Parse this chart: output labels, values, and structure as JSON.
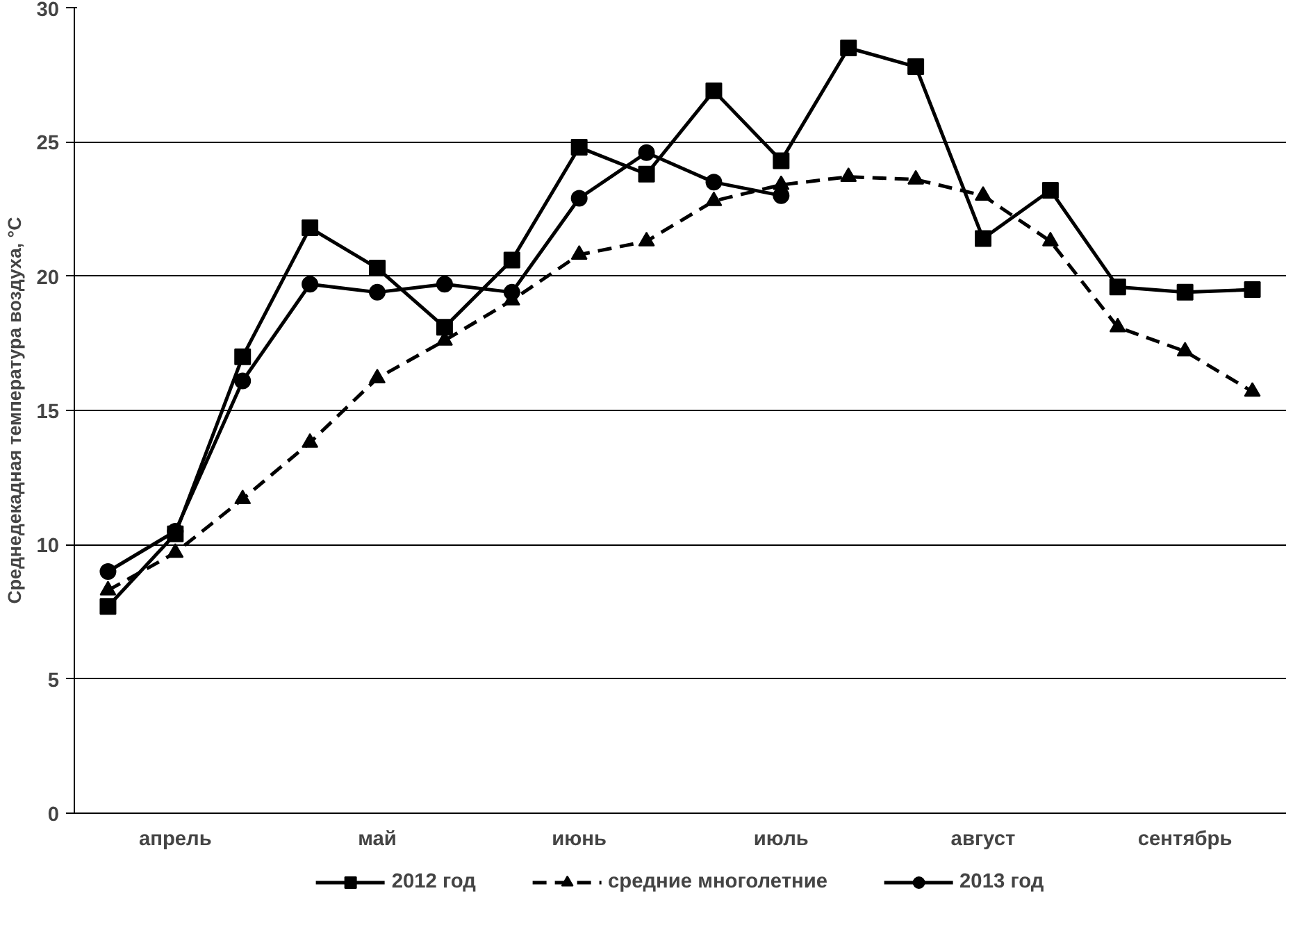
{
  "chart_data": {
    "type": "line",
    "ylabel": "Среднедекадная температура воздуха, °С",
    "categories": [
      null,
      "апрель",
      null,
      null,
      "май",
      null,
      null,
      "июнь",
      null,
      null,
      "июль",
      null,
      null,
      "август",
      null,
      null,
      "сентябрь",
      null
    ],
    "ylim": [
      0,
      30
    ],
    "yticks": [
      0,
      5,
      10,
      15,
      20,
      25,
      30
    ],
    "grid": "y",
    "legend": "bottom",
    "series": [
      {
        "name": "2012 год",
        "color": "#000000",
        "marker": "square",
        "line_style": "solid",
        "values": [
          7.7,
          10.4,
          17.0,
          21.8,
          20.3,
          18.1,
          20.6,
          24.8,
          23.8,
          26.9,
          24.3,
          28.5,
          27.8,
          21.4,
          23.2,
          19.6,
          19.4,
          19.5
        ]
      },
      {
        "name": "средние многолетние",
        "color": "#000000",
        "marker": "triangle",
        "line_style": "dashed",
        "values": [
          8.3,
          9.7,
          11.7,
          13.8,
          16.2,
          17.6,
          19.1,
          20.8,
          21.3,
          22.8,
          23.4,
          23.7,
          23.6,
          23.0,
          21.3,
          18.1,
          17.2,
          15.7
        ]
      },
      {
        "name": "2013 год",
        "color": "#000000",
        "marker": "circle",
        "line_style": "solid",
        "values": [
          9.0,
          10.5,
          16.1,
          19.7,
          19.4,
          19.7,
          19.4,
          22.9,
          24.6,
          23.5,
          23.0,
          null,
          null,
          null,
          null,
          null,
          null,
          null
        ]
      }
    ]
  }
}
